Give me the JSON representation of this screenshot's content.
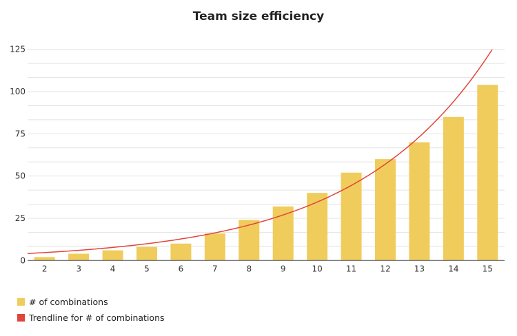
{
  "chart_data": {
    "type": "bar",
    "title": "Team size efficiency",
    "categories": [
      "2",
      "3",
      "4",
      "5",
      "6",
      "7",
      "8",
      "9",
      "10",
      "11",
      "12",
      "13",
      "14",
      "15"
    ],
    "series": [
      {
        "name": "# of combinations",
        "values": [
          2,
          4,
          6,
          8,
          10,
          16,
          24,
          32,
          40,
          52,
          60,
          70,
          85,
          104
        ],
        "color": "#f0cc5c"
      }
    ],
    "trendline": {
      "name": "Trendline for # of combinations",
      "type": "exponential",
      "a": 2.84,
      "b": 0.25,
      "color": "#e0453a"
    },
    "yticks": [
      0,
      25,
      50,
      75,
      100,
      125
    ],
    "ylim": [
      0,
      125
    ],
    "grid": true,
    "legend": "bottom-left"
  }
}
